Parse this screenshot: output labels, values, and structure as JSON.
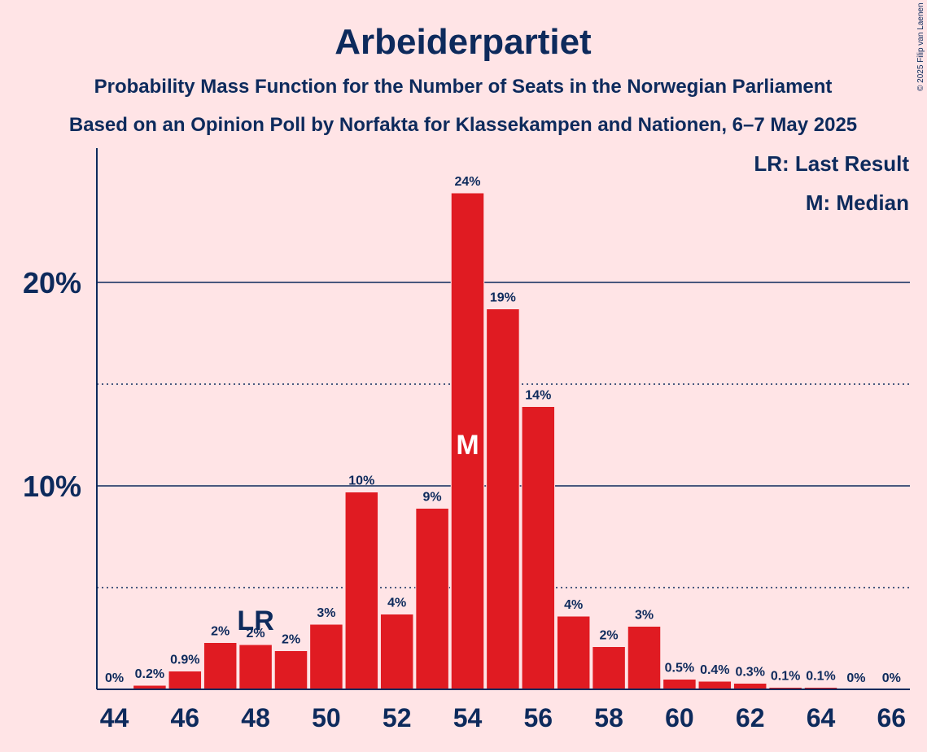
{
  "chart_data": {
    "type": "bar",
    "title": "Arbeiderpartiet",
    "subtitle1": "Probability Mass Function for the Number of Seats in the Norwegian Parliament",
    "subtitle2": "Based on an Opinion Poll by Norfakta for Klassekampen and Nationen, 6–7 May 2025",
    "copyright": "© 2025 Filip van Laenen",
    "legend": [
      "LR: Last Result",
      "M: Median"
    ],
    "categories": [
      44,
      45,
      46,
      47,
      48,
      49,
      50,
      51,
      52,
      53,
      54,
      55,
      56,
      57,
      58,
      59,
      60,
      61,
      62,
      63,
      64,
      65,
      66
    ],
    "values": [
      0,
      0.2,
      0.9,
      2.3,
      2.2,
      1.9,
      3.2,
      9.7,
      3.7,
      8.9,
      24.4,
      18.7,
      13.9,
      3.6,
      2.1,
      3.1,
      0.5,
      0.4,
      0.3,
      0.1,
      0.1,
      0,
      0
    ],
    "value_labels": [
      "0%",
      "0.2%",
      "0.9%",
      "2%",
      "2%",
      "2%",
      "3%",
      "10%",
      "4%",
      "9%",
      "24%",
      "19%",
      "14%",
      "4%",
      "2%",
      "3%",
      "0.5%",
      "0.4%",
      "0.3%",
      "0.1%",
      "0.1%",
      "0%",
      "0%"
    ],
    "x_tick_labels": [
      "44",
      "46",
      "48",
      "50",
      "52",
      "54",
      "56",
      "58",
      "60",
      "62",
      "64",
      "66"
    ],
    "y_tick_labels": [
      "10%",
      "20%"
    ],
    "y_ticks": [
      10,
      20
    ],
    "y_minor_ticks": [
      5,
      15
    ],
    "ylim": [
      0,
      26.5
    ],
    "last_result": {
      "seat": 48,
      "label": "LR"
    },
    "median": {
      "seat": 54,
      "label": "M"
    },
    "colors": {
      "bar": "#e01b22",
      "axis": "#0d2a5c",
      "background": "#ffe4e6",
      "median_text": "#ffffff"
    }
  }
}
